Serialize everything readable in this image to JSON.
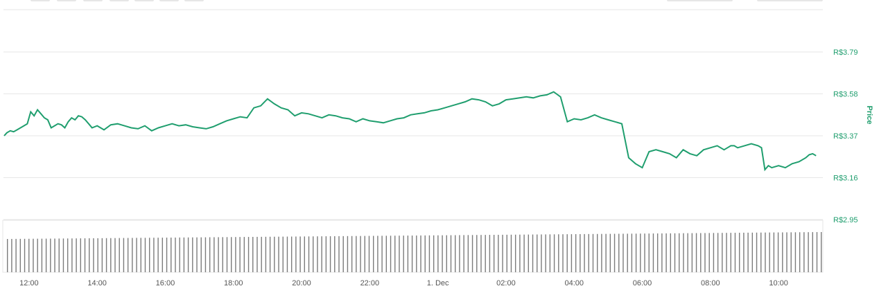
{
  "top_controls": {
    "left_buttons": [
      "",
      "",
      "",
      "",
      "",
      "",
      ""
    ],
    "right_buttons": [
      "",
      ""
    ]
  },
  "chart_data": {
    "type": "line",
    "title": "",
    "ylabel": "Price",
    "xlabel": "",
    "currency_prefix": "R$",
    "y_ticks": [
      "R$3.79",
      "R$3.58",
      "R$3.37",
      "R$3.16",
      "R$2.95"
    ],
    "y_tick_values": [
      3.79,
      3.58,
      3.37,
      3.16,
      2.95
    ],
    "ylim": [
      2.95,
      3.79
    ],
    "x_ticks": [
      "12:00",
      "14:00",
      "16:00",
      "18:00",
      "20:00",
      "22:00",
      "1. Dec",
      "02:00",
      "04:00",
      "06:00",
      "08:00",
      "10:00"
    ],
    "x_tick_hours": [
      0,
      2,
      4,
      6,
      8,
      10,
      12,
      14,
      16,
      18,
      20,
      22
    ],
    "xlim_hours": [
      -0.75,
      23.3
    ],
    "grid": true,
    "line_color": "#1f9e6e",
    "volume_color": "#7b7b7b",
    "series": [
      {
        "values_x": [
          -0.73,
          -0.65,
          -0.55,
          -0.45,
          -0.35,
          -0.25,
          -0.15,
          -0.05,
          0.05,
          0.15,
          0.25,
          0.35,
          0.45,
          0.55,
          0.65,
          0.75,
          0.85,
          0.95,
          1.05,
          1.15,
          1.25,
          1.35,
          1.45,
          1.55,
          1.65,
          1.75,
          1.85,
          2.0,
          2.2,
          2.4,
          2.6,
          2.8,
          3.0,
          3.2,
          3.4,
          3.6,
          3.8,
          4.0,
          4.2,
          4.4,
          4.6,
          4.8,
          5.0,
          5.2,
          5.4,
          5.6,
          5.8,
          6.0,
          6.2,
          6.4,
          6.6,
          6.8,
          7.0,
          7.2,
          7.4,
          7.6,
          7.8,
          8.0,
          8.2,
          8.4,
          8.6,
          8.8,
          9.0,
          9.2,
          9.4,
          9.6,
          9.8,
          10.0,
          10.2,
          10.4,
          10.6,
          10.8,
          11.0,
          11.2,
          11.4,
          11.6,
          11.8,
          12.0,
          12.2,
          12.4,
          12.6,
          12.8,
          13.0,
          13.2,
          13.4,
          13.6,
          13.8,
          14.0,
          14.2,
          14.4,
          14.6,
          14.8,
          15.0,
          15.2,
          15.4,
          15.6,
          15.8,
          16.0,
          16.2,
          16.4,
          16.6,
          16.8,
          17.0,
          17.2,
          17.4,
          17.6,
          17.8,
          18.0,
          18.2,
          18.4,
          18.6,
          18.8,
          19.0,
          19.2,
          19.4,
          19.6,
          19.8,
          20.0,
          20.2,
          20.4,
          20.5,
          20.6,
          20.7,
          20.8,
          21.0,
          21.2,
          21.4,
          21.5,
          21.6,
          21.7,
          21.8,
          22.0,
          22.2,
          22.4,
          22.6,
          22.8,
          22.9,
          23.0,
          23.1
        ],
        "values": [
          3.37,
          3.385,
          3.395,
          3.39,
          3.4,
          3.41,
          3.42,
          3.43,
          3.49,
          3.47,
          3.5,
          3.48,
          3.46,
          3.45,
          3.41,
          3.42,
          3.43,
          3.425,
          3.41,
          3.44,
          3.46,
          3.45,
          3.47,
          3.465,
          3.45,
          3.43,
          3.41,
          3.42,
          3.4,
          3.425,
          3.43,
          3.42,
          3.41,
          3.405,
          3.42,
          3.395,
          3.41,
          3.42,
          3.43,
          3.42,
          3.425,
          3.415,
          3.41,
          3.405,
          3.415,
          3.43,
          3.445,
          3.455,
          3.465,
          3.46,
          3.51,
          3.52,
          3.555,
          3.53,
          3.51,
          3.5,
          3.47,
          3.485,
          3.48,
          3.47,
          3.46,
          3.475,
          3.47,
          3.46,
          3.455,
          3.44,
          3.455,
          3.445,
          3.44,
          3.435,
          3.445,
          3.455,
          3.46,
          3.475,
          3.48,
          3.485,
          3.495,
          3.5,
          3.51,
          3.52,
          3.53,
          3.54,
          3.555,
          3.55,
          3.54,
          3.52,
          3.53,
          3.55,
          3.555,
          3.56,
          3.565,
          3.56,
          3.57,
          3.575,
          3.59,
          3.565,
          3.44,
          3.455,
          3.45,
          3.46,
          3.475,
          3.46,
          3.45,
          3.44,
          3.43,
          3.26,
          3.23,
          3.21,
          3.29,
          3.3,
          3.29,
          3.28,
          3.26,
          3.3,
          3.28,
          3.27,
          3.3,
          3.31,
          3.32,
          3.3,
          3.31,
          3.32,
          3.32,
          3.31,
          3.32,
          3.33,
          3.32,
          3.31,
          3.2,
          3.22,
          3.21,
          3.22,
          3.21,
          3.23,
          3.24,
          3.26,
          3.275,
          3.28,
          3.27
        ]
      }
    ],
    "volume_bars_count": 190
  }
}
